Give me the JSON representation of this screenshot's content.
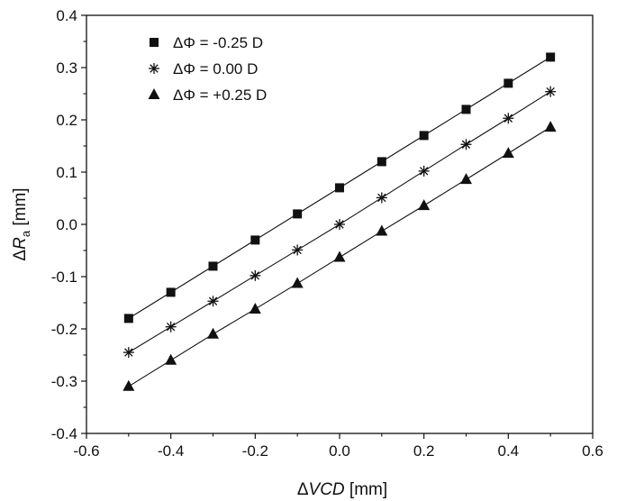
{
  "chart_data": {
    "type": "scatter",
    "title": "",
    "xlabel": {
      "prefix": "Δ",
      "main": "VCD",
      "suffix": " [mm]"
    },
    "ylabel": {
      "prefix": "Δ",
      "main": "R",
      "sub": "a",
      "suffix": " [mm]"
    },
    "xlim": [
      -0.6,
      0.6
    ],
    "ylim": [
      -0.4,
      0.4
    ],
    "x_ticks": [
      -0.6,
      -0.4,
      -0.2,
      0.0,
      0.2,
      0.4,
      0.6
    ],
    "x_tick_labels": [
      "-0.6",
      "-0.4",
      "-0.2",
      "0.0",
      "0.2",
      "0.4",
      "0.6"
    ],
    "y_ticks": [
      -0.4,
      -0.3,
      -0.2,
      -0.1,
      0.0,
      0.1,
      0.2,
      0.3,
      0.4
    ],
    "y_tick_labels": [
      "-0.4",
      "-0.3",
      "-0.2",
      "-0.1",
      "0.0",
      "0.1",
      "0.2",
      "0.3",
      "0.4"
    ],
    "grid": false,
    "legend_position": "top-left",
    "x": [
      -0.5,
      -0.4,
      -0.3,
      -0.2,
      -0.1,
      0.0,
      0.1,
      0.2,
      0.3,
      0.4,
      0.5
    ],
    "series": [
      {
        "name": "ΔΦ = -0.25 D",
        "marker": "square",
        "values": [
          -0.18,
          -0.13,
          -0.08,
          -0.03,
          0.02,
          0.07,
          0.12,
          0.17,
          0.22,
          0.27,
          0.32
        ]
      },
      {
        "name": "ΔΦ = 0.00 D",
        "marker": "asterisk",
        "values": [
          -0.245,
          -0.196,
          -0.147,
          -0.098,
          -0.049,
          0.0,
          0.051,
          0.102,
          0.153,
          0.203,
          0.254
        ]
      },
      {
        "name": "ΔΦ = +0.25 D",
        "marker": "triangle",
        "values": [
          -0.31,
          -0.26,
          -0.21,
          -0.162,
          -0.113,
          -0.063,
          -0.013,
          0.036,
          0.086,
          0.136,
          0.186
        ]
      }
    ],
    "fit_lines": true,
    "colors": {
      "marker": "#111111",
      "line": "#111111",
      "axis": "#111111"
    }
  }
}
